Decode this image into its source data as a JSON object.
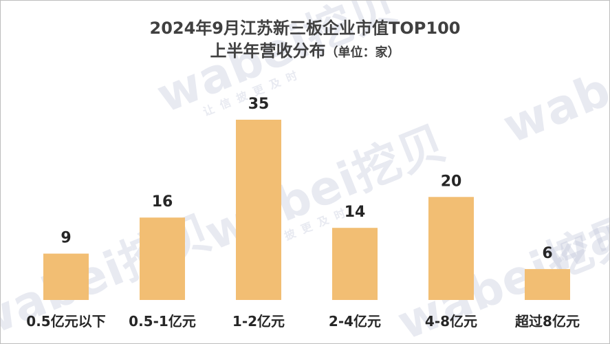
{
  "chart_data": {
    "type": "bar",
    "title": "2024年9月江苏新三板企业市值TOP100",
    "subtitle": "上半年营收分布",
    "unit_note": "（单位：家）",
    "categories": [
      "0.5亿元以下",
      "0.5-1亿元",
      "1-2亿元",
      "2-4亿元",
      "4-8亿元",
      "超过8亿元"
    ],
    "values": [
      9,
      16,
      35,
      14,
      20,
      6
    ],
    "ylim": [
      0,
      35
    ],
    "grid": false,
    "legend": "none",
    "bar_color": "#F2BE73",
    "data_labels": true
  },
  "watermark": {
    "brand": "wabei挖贝",
    "tagline": "让信披更及时"
  }
}
